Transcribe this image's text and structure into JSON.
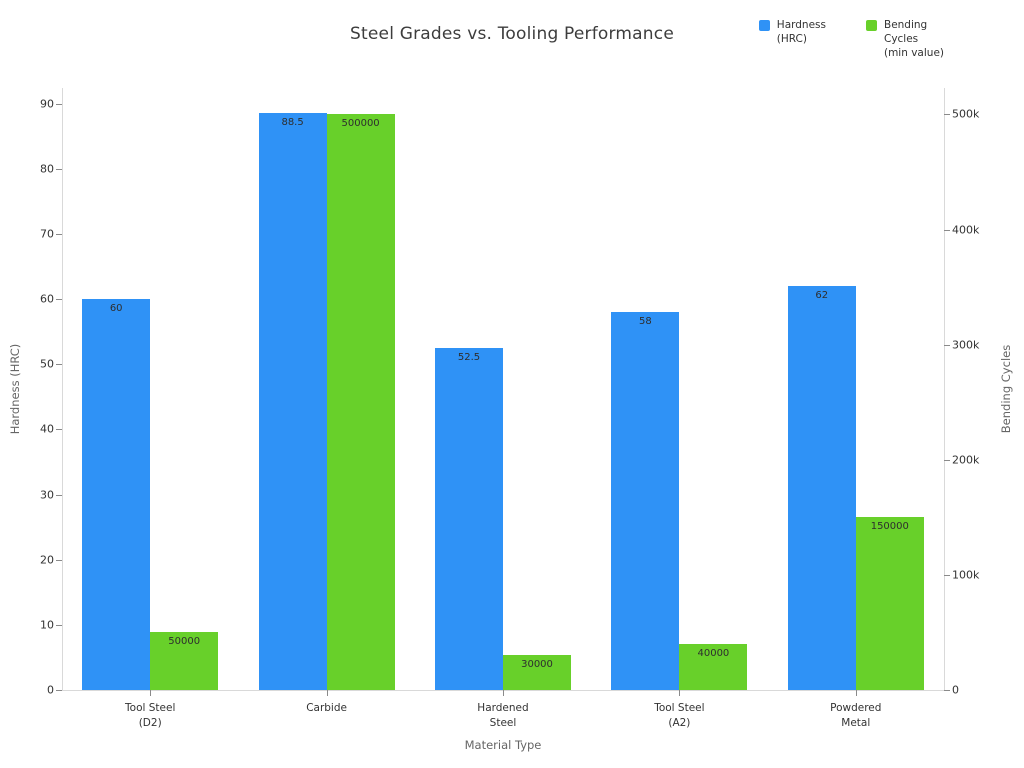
{
  "chart_data": {
    "type": "bar",
    "title": "Steel Grades vs. Tooling Performance",
    "xlabel": "Material Type",
    "ylabel_left": "Hardness (HRC)",
    "ylabel_right": "Bending Cycles",
    "categories": [
      [
        "Tool Steel",
        "(D2)"
      ],
      [
        "Carbide"
      ],
      [
        "Hardened",
        "Steel"
      ],
      [
        "Tool Steel",
        "(A2)"
      ],
      [
        "Powdered",
        "Metal"
      ]
    ],
    "series": [
      {
        "name": "Hardness (HRC)",
        "axis": "left",
        "color": "#2f92f6",
        "values": [
          60,
          88.5,
          52.5,
          58,
          62
        ],
        "labels": [
          "60",
          "88.5",
          "52.5",
          "58",
          "62"
        ]
      },
      {
        "name": "Bending Cycles (min value)",
        "axis": "right",
        "color": "#68d02a",
        "values": [
          50000,
          500000,
          30000,
          40000,
          150000
        ],
        "labels": [
          "50000",
          "500000",
          "30000",
          "40000",
          "150000"
        ]
      }
    ],
    "ylim_left": [
      0,
      92.4
    ],
    "ylim_right": [
      0,
      523000
    ],
    "yticks_left": {
      "values": [
        0,
        10,
        20,
        30,
        40,
        50,
        60,
        70,
        80,
        90
      ],
      "labels": [
        "0",
        "10",
        "20",
        "30",
        "40",
        "50",
        "60",
        "70",
        "80",
        "90"
      ]
    },
    "yticks_right": {
      "values": [
        0,
        100000,
        200000,
        300000,
        400000,
        500000
      ],
      "labels": [
        "0",
        "100k",
        "200k",
        "300k",
        "400k",
        "500k"
      ]
    },
    "grid": false,
    "legend_position": "top-right"
  },
  "legend": {
    "items": [
      {
        "color": "#2f92f6",
        "lines": [
          "Hardness",
          "(HRC)"
        ]
      },
      {
        "color": "#68d02a",
        "lines": [
          "Bending",
          "Cycles",
          "(min value)"
        ]
      }
    ]
  }
}
